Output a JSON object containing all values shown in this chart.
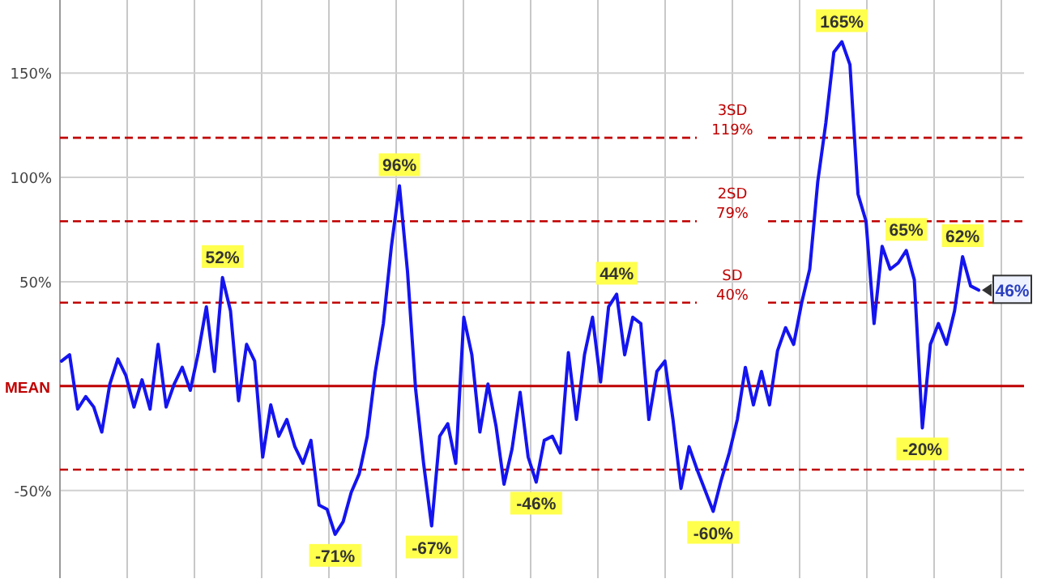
{
  "chart_data": {
    "type": "line",
    "categories": [
      null,
      null,
      null,
      null,
      null,
      null,
      null,
      null,
      null,
      null,
      null,
      null,
      null,
      null,
      null,
      null,
      null,
      null,
      null,
      null,
      null,
      null,
      null,
      null,
      null,
      null,
      null,
      null,
      null,
      null,
      null,
      null,
      null,
      null,
      null,
      null,
      null,
      null,
      null,
      null,
      null,
      null,
      null,
      null,
      null,
      null,
      null,
      null,
      null,
      null,
      null,
      null,
      null,
      null,
      null,
      null,
      null,
      null,
      null,
      null,
      null,
      null,
      null,
      null,
      null,
      null,
      null,
      null,
      null,
      null,
      null,
      null,
      null,
      null,
      null,
      null,
      null,
      null,
      null,
      null,
      null,
      null,
      null,
      null,
      null,
      null,
      null,
      null,
      null,
      null,
      null,
      null,
      null,
      null,
      null,
      null,
      null,
      null,
      null,
      null,
      null,
      null,
      null,
      null,
      null,
      null,
      null,
      null,
      null,
      null,
      null,
      null,
      null,
      null,
      null
    ],
    "series": [
      {
        "color": "#1414f0",
        "values": [
          12,
          15,
          -11,
          -5,
          -10,
          -22,
          1,
          13,
          5,
          -10,
          3,
          -11,
          20,
          -10,
          1,
          9,
          -2,
          16,
          38,
          7,
          52,
          36,
          -7,
          20,
          12,
          -34,
          -9,
          -24,
          -16,
          -29,
          -37,
          -26,
          -57,
          -59,
          -71,
          -65,
          -51,
          -42,
          -24,
          7,
          30,
          67,
          96,
          55,
          -1,
          -37,
          -67,
          -24,
          -18,
          -37,
          33,
          15,
          -22,
          1,
          -19,
          -47,
          -30,
          -3,
          -34,
          -46,
          -26,
          -24,
          -32,
          16,
          -16,
          15,
          33,
          2,
          38,
          44,
          15,
          33,
          30,
          -16,
          7,
          12,
          -16,
          -49,
          -29,
          -40,
          -50,
          -60,
          -45,
          -32,
          -16,
          9,
          -9,
          7,
          -9,
          17,
          28,
          20,
          40,
          56,
          98,
          126,
          160,
          165,
          154,
          92,
          79,
          30,
          67,
          56,
          59,
          65,
          51,
          -20,
          20,
          30,
          20,
          36,
          62,
          48,
          46
        ],
        "value_labels": [
          null,
          null,
          null,
          null,
          null,
          null,
          null,
          null,
          null,
          null,
          null,
          null,
          null,
          null,
          null,
          null,
          null,
          null,
          null,
          null,
          "52%",
          null,
          null,
          null,
          null,
          null,
          null,
          null,
          null,
          null,
          null,
          null,
          null,
          null,
          "-71%",
          null,
          null,
          null,
          null,
          null,
          null,
          null,
          "96%",
          null,
          null,
          null,
          "-67%",
          null,
          null,
          null,
          null,
          null,
          null,
          null,
          null,
          null,
          null,
          null,
          null,
          "-46%",
          null,
          null,
          null,
          null,
          null,
          null,
          null,
          null,
          null,
          "44%",
          null,
          null,
          null,
          null,
          null,
          null,
          null,
          null,
          null,
          null,
          null,
          "-60%",
          null,
          null,
          null,
          null,
          null,
          null,
          null,
          null,
          null,
          null,
          null,
          null,
          null,
          null,
          null,
          "165%",
          null,
          null,
          null,
          null,
          null,
          null,
          null,
          "65%",
          null,
          "-20%",
          null,
          null,
          null,
          null,
          "62%",
          null,
          "46%"
        ]
      }
    ],
    "ylim": [
      -92,
      185
    ],
    "yticks": [
      {
        "value": -50,
        "label": "-50%"
      },
      {
        "value": 0,
        "label": null
      },
      {
        "value": 50,
        "label": "50%"
      },
      {
        "value": 100,
        "label": "100%"
      },
      {
        "value": 150,
        "label": "150%"
      }
    ],
    "grid": true,
    "ref_lines": [
      {
        "axis": "y",
        "value": 0,
        "label": "MEAN",
        "color": "#c00000",
        "line_style": "solid"
      },
      {
        "axis": "y",
        "value": 40,
        "label": "SD\n40%",
        "color": "#c00000",
        "line_style": "dashed"
      },
      {
        "axis": "y",
        "value": 79,
        "label": "2SD\n79%",
        "color": "#c00000",
        "line_style": "dashed"
      },
      {
        "axis": "y",
        "value": 119,
        "label": "3SD\n119%",
        "color": "#c00000",
        "line_style": "dashed"
      },
      {
        "axis": "y",
        "value": -40,
        "color": "#c00000",
        "line_style": "dashed"
      }
    ]
  }
}
